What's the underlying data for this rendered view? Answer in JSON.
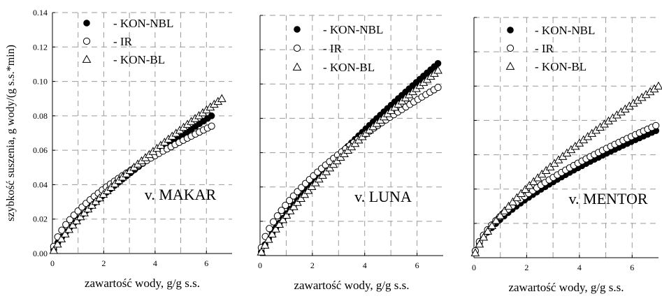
{
  "chart_data": [
    {
      "type": "scatter",
      "panel_label": "v. MAKAR",
      "xlabel": "zawartość wody, g/g s.s.",
      "ylabel": "szybkość suszenia, g wody/(g s.s.*min)",
      "xlim": [
        0,
        7
      ],
      "ylim": [
        0,
        0.14
      ],
      "xticks": [
        0,
        2,
        4,
        6
      ],
      "yticks": [
        0.0,
        0.02,
        0.04,
        0.06,
        0.08,
        0.1,
        0.12,
        0.14
      ],
      "grid": true,
      "legend_position": "top-left",
      "series": [
        {
          "name": "- KON-NBL",
          "marker": "filled-circle",
          "curve": {
            "x_end": 6.2,
            "y_end": 0.08,
            "exponent": 0.75,
            "n": 40
          }
        },
        {
          "name": "- IR",
          "marker": "open-circle",
          "curve": {
            "x_end": 6.2,
            "y_end": 0.074,
            "exponent": 0.6,
            "n": 40
          }
        },
        {
          "name": "- KON-BL",
          "marker": "open-triangle",
          "curve": {
            "x_end": 6.6,
            "y_end": 0.09,
            "exponent": 0.8,
            "n": 45
          }
        }
      ]
    },
    {
      "type": "scatter",
      "panel_label": "v. LUNA",
      "xlabel": "zawartość wody, g/g s.s.",
      "ylabel": "",
      "xlim": [
        0,
        7
      ],
      "ylim": [
        0,
        0.14
      ],
      "xticks": [
        0,
        2,
        4,
        6
      ],
      "yticks": [],
      "grid": true,
      "legend_position": "top-left",
      "series": [
        {
          "name": "- KON-NBL",
          "marker": "filled-circle",
          "curve": {
            "x_end": 6.8,
            "y_end": 0.112,
            "exponent": 0.8,
            "n": 50
          }
        },
        {
          "name": "- IR",
          "marker": "open-circle",
          "curve": {
            "x_end": 6.8,
            "y_end": 0.098,
            "exponent": 0.62,
            "n": 45
          }
        },
        {
          "name": "- KON-BL",
          "marker": "open-triangle",
          "curve": {
            "x_end": 6.8,
            "y_end": 0.108,
            "exponent": 0.8,
            "n": 50
          }
        }
      ]
    },
    {
      "type": "scatter",
      "panel_label": "v. MENTOR",
      "xlabel": "zawartość wody, g/g s.s.",
      "ylabel": "",
      "xlim": [
        0,
        7
      ],
      "ylim": [
        0,
        0.14
      ],
      "xticks": [
        0,
        2,
        4,
        6
      ],
      "yticks": [],
      "grid": true,
      "legend_position": "top-left",
      "series": [
        {
          "name": "- KON-NBL",
          "marker": "filled-circle",
          "curve": {
            "x_end": 6.9,
            "y_end": 0.074,
            "exponent": 0.62,
            "n": 45
          }
        },
        {
          "name": "- IR",
          "marker": "open-circle",
          "curve": {
            "x_end": 6.9,
            "y_end": 0.077,
            "exponent": 0.6,
            "n": 45
          }
        },
        {
          "name": "- KON-BL",
          "marker": "open-triangle",
          "curve": {
            "x_end": 7.0,
            "y_end": 0.1,
            "exponent": 0.72,
            "n": 45
          }
        }
      ]
    }
  ]
}
